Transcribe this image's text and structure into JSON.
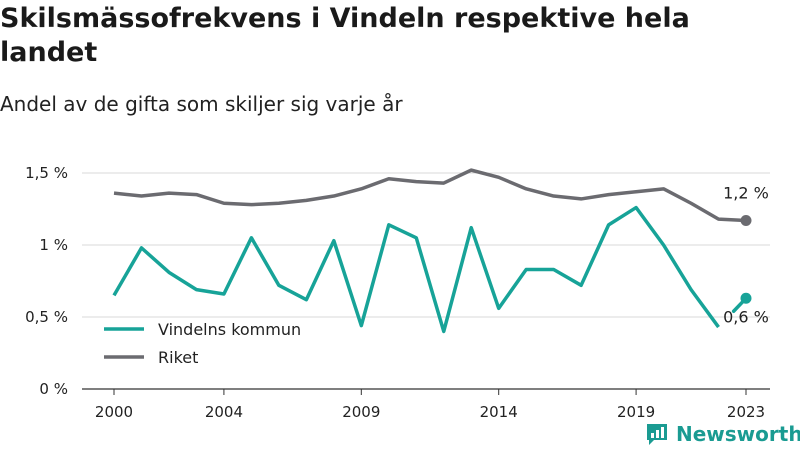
{
  "title": "Skilsmässofrekvens i Vindeln respektive hela landet",
  "subtitle": "Andel av de gifta som skiljer sig varje år",
  "brand": "Newsworthy",
  "colors": {
    "vindeln": "#17a398",
    "riket": "#6b6b70",
    "grid": "#d9d9d9"
  },
  "chart_data": {
    "type": "line",
    "x": [
      2000,
      2001,
      2002,
      2003,
      2004,
      2005,
      2006,
      2007,
      2008,
      2009,
      2010,
      2011,
      2012,
      2013,
      2014,
      2015,
      2016,
      2017,
      2018,
      2019,
      2020,
      2021,
      2022,
      2023
    ],
    "x_tick_labels": [
      "2000",
      "2004",
      "2009",
      "2014",
      "2019",
      "2023"
    ],
    "x_ticks": [
      2000,
      2004,
      2009,
      2014,
      2019,
      2023
    ],
    "y_tick_labels": [
      "0 %",
      "0,5 %",
      "1 %",
      "1,5 %"
    ],
    "y_ticks": [
      0,
      0.5,
      1.0,
      1.5
    ],
    "ylim": [
      0,
      1.5
    ],
    "xlim": [
      2000,
      2023
    ],
    "grid": true,
    "legend_position": "bottom-left",
    "series": [
      {
        "name": "Vindelns kommun",
        "key": "vindeln",
        "values": [
          0.65,
          0.98,
          0.81,
          0.69,
          0.66,
          1.05,
          0.72,
          0.62,
          1.03,
          0.44,
          1.14,
          1.05,
          0.4,
          1.12,
          0.56,
          0.83,
          0.83,
          0.72,
          1.14,
          1.26,
          1.0,
          0.69,
          0.43,
          0.63
        ],
        "end_label": "0,6 %"
      },
      {
        "name": "Riket",
        "key": "riket",
        "values": [
          1.36,
          1.34,
          1.36,
          1.35,
          1.29,
          1.28,
          1.29,
          1.31,
          1.34,
          1.39,
          1.46,
          1.44,
          1.43,
          1.52,
          1.47,
          1.39,
          1.34,
          1.32,
          1.35,
          1.37,
          1.39,
          1.29,
          1.18,
          1.17
        ],
        "end_label": "1,2 %"
      }
    ]
  }
}
